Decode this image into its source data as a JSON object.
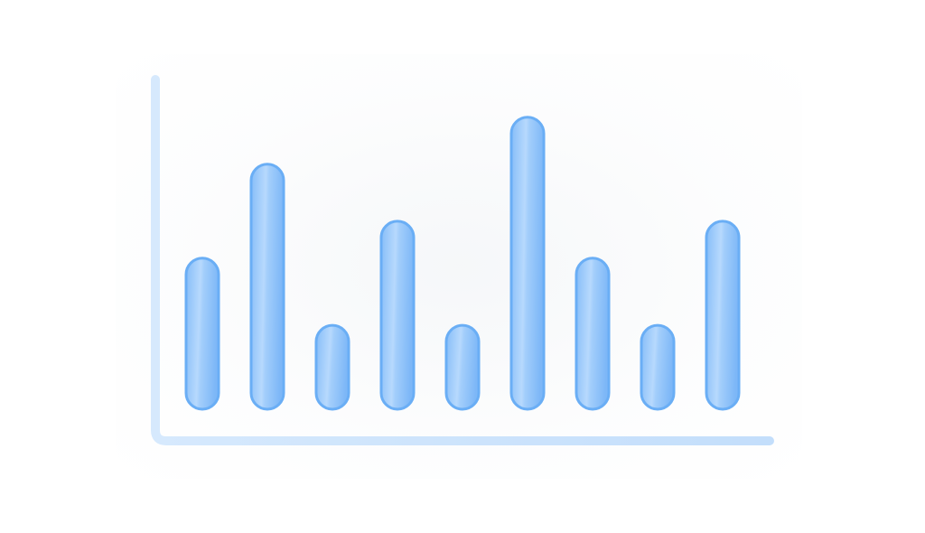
{
  "chart_data": {
    "type": "bar",
    "title": "",
    "xlabel": "",
    "ylabel": "",
    "categories": [
      "",
      "",
      "",
      "",
      "",
      "",
      "",
      "",
      ""
    ],
    "values": [
      4.5,
      7.3,
      2.5,
      5.6,
      2.5,
      8.7,
      4.5,
      2.5,
      5.6
    ],
    "ylim": [
      0,
      9.5
    ],
    "grid": false,
    "legend": "none",
    "colors": {
      "bar_fill_dark": "#7fb9f8",
      "bar_fill_light": "#b9dafd",
      "bar_stroke": "#6aaef5",
      "axis": "#c9e2fc"
    }
  }
}
